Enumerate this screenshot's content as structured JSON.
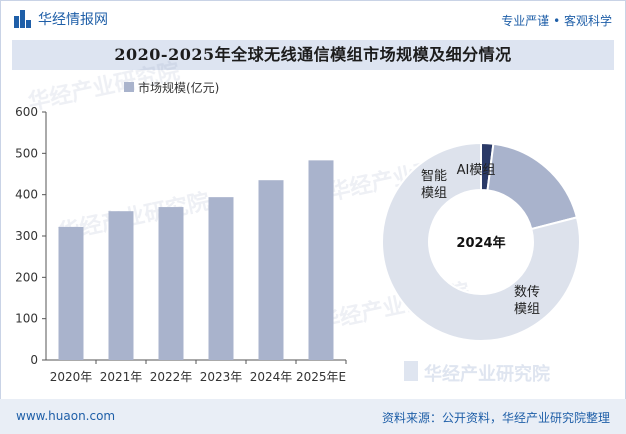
{
  "header": {
    "brand": "华经情报网",
    "slogan": "专业严谨 • 客观科学"
  },
  "title": "2020-2025年全球无线通信模组市场规模及细分情况",
  "footer": {
    "url": "www.huaon.com",
    "source": "资料来源：公开资料，华经产业研究院整理"
  },
  "watermark": "华经产业研究院",
  "colors": {
    "bar": "#a9b3cc",
    "pie_dark": "#2b3a67",
    "pie_mid": "#a9b3cc",
    "pie_light": "#dde2ec",
    "brand": "#1f5fa8",
    "title_bg": "#dde4f1"
  },
  "chart_data": [
    {
      "type": "bar",
      "legend": [
        "市场规模(亿元)"
      ],
      "categories": [
        "2020年",
        "2021年",
        "2022年",
        "2023年",
        "2024年",
        "2025年E"
      ],
      "series": [
        {
          "name": "市场规模(亿元)",
          "values": [
            322,
            360,
            370,
            394,
            435,
            483
          ]
        }
      ],
      "yticks": [
        "0",
        "100",
        "200",
        "300",
        "400",
        "500",
        "600"
      ],
      "ylim": [
        0,
        600
      ],
      "grid": false
    },
    {
      "type": "pie",
      "center_label": "2024年",
      "labels": [
        "AI模组",
        "智能模组",
        "数传模组"
      ],
      "values": [
        2,
        19,
        79
      ],
      "donut": true
    }
  ]
}
